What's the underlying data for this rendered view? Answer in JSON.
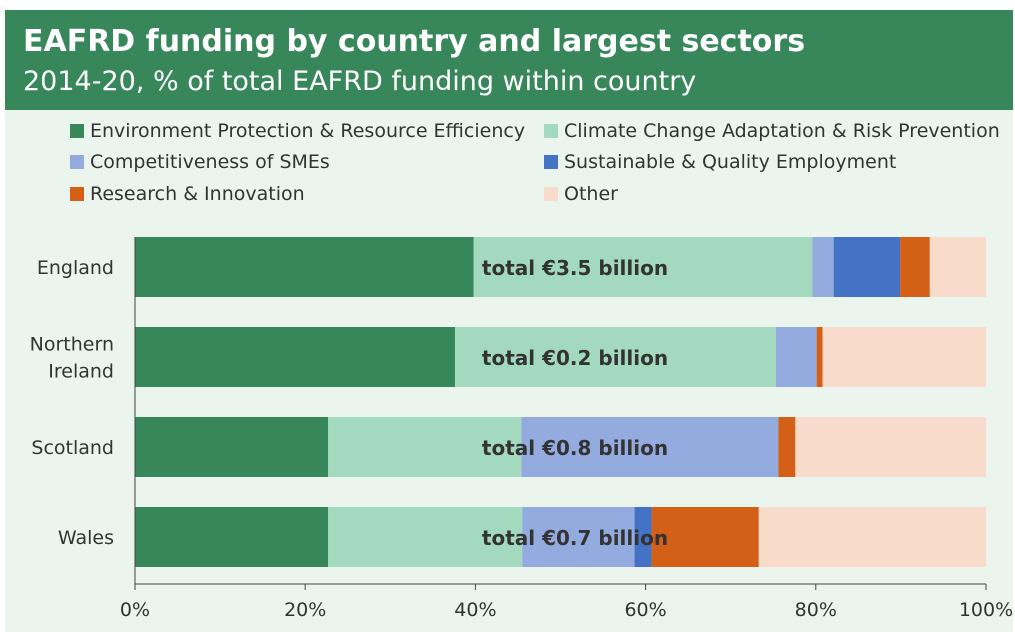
{
  "header": {
    "title": "EAFRD funding by country and largest sectors",
    "subtitle": "2014-20, % of total EAFRD funding within country"
  },
  "chart_data": {
    "type": "bar",
    "orientation": "horizontal",
    "stacked": true,
    "title": "EAFRD funding by country and largest sectors",
    "subtitle": "2014-20, % of total EAFRD funding within country",
    "categories": [
      "England",
      "Northern Ireland",
      "Scotland",
      "Wales"
    ],
    "category_labels": [
      [
        "England"
      ],
      [
        "Northern",
        "Ireland"
      ],
      [
        "Scotland"
      ],
      [
        "Wales"
      ]
    ],
    "series": [
      {
        "name": "Environment Protection & Resource Efficiency",
        "color": "#37875b",
        "values": [
          39.8,
          37.6,
          22.7,
          22.7
        ]
      },
      {
        "name": "Climate Change Adaptation & Risk Prevention",
        "color": "#a3d9be",
        "values": [
          39.8,
          37.7,
          22.7,
          22.8
        ]
      },
      {
        "name": "Competitiveness of SMEs",
        "color": "#93abdf",
        "values": [
          2.5,
          4.8,
          30.2,
          13.2
        ]
      },
      {
        "name": "Sustainable & Quality Employment",
        "color": "#4472c4",
        "values": [
          7.8,
          0.0,
          0.0,
          2.0
        ]
      },
      {
        "name": "Research & Innovation",
        "color": "#d45f16",
        "values": [
          3.5,
          0.7,
          2.0,
          12.6
        ]
      },
      {
        "name": "Other",
        "color": "#f9dbcc",
        "values": [
          6.6,
          19.2,
          22.4,
          26.7
        ]
      }
    ],
    "annotations": [
      "total €3.5 billion",
      "total €0.2 billion",
      "total €0.8 billion",
      "total €0.7 billion"
    ],
    "xlim": [
      0,
      100
    ],
    "xticks": [
      0,
      20,
      40,
      60,
      80,
      100
    ],
    "xtick_labels": [
      "0%",
      "20%",
      "40%",
      "60%",
      "80%",
      "100%"
    ],
    "xlabel": "",
    "ylabel": "",
    "grid": false,
    "legend_position": "top"
  }
}
